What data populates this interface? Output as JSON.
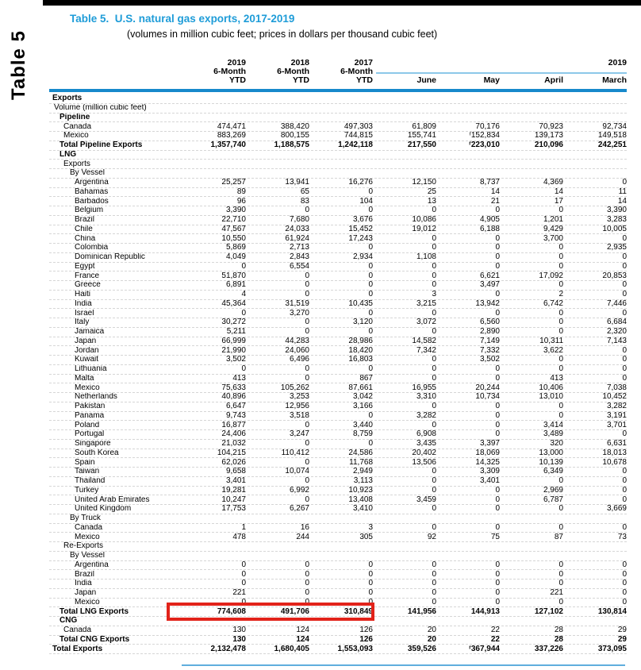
{
  "page": {
    "side_label": "Table 5",
    "title": "Table 5.  U.S. natural gas exports, 2017-2019",
    "subtitle": "(volumes in million cubic feet; prices in dollars per thousand cubic feet)"
  },
  "colors": {
    "accent_blue": "#1E9CD8",
    "rule_blue": "#1789CB",
    "light_blue": "#8CC8E9",
    "bottom_line_blue": "#5FAEDD",
    "highlight_red": "#E2231A"
  },
  "header": {
    "ytd_years": [
      "2019",
      "2018",
      "2017"
    ],
    "ytd_line2": "6-Month",
    "ytd_line3": "YTD",
    "month_group_year": "2019",
    "months": [
      "June",
      "May",
      "April",
      "March"
    ]
  },
  "rows": [
    {
      "label": "Exports",
      "indent": 0,
      "bold": true,
      "values": [
        "",
        "",
        "",
        "",
        "",
        "",
        ""
      ]
    },
    {
      "label": "Volume (million cubic feet)",
      "indent": 1,
      "bold": false,
      "values": [
        "",
        "",
        "",
        "",
        "",
        "",
        ""
      ]
    },
    {
      "label": "Pipeline",
      "indent": 2,
      "bold": true,
      "values": [
        "",
        "",
        "",
        "",
        "",
        "",
        ""
      ]
    },
    {
      "label": "Canada",
      "indent": 3,
      "bold": false,
      "values": [
        "474,471",
        "388,420",
        "497,303",
        "61,809",
        "70,176",
        "70,923",
        "92,734"
      ]
    },
    {
      "label": "Mexico",
      "indent": 3,
      "bold": false,
      "values": [
        "883,269",
        "800,155",
        "744,815",
        "155,741",
        "ʳ152,834",
        "139,173",
        "149,518"
      ]
    },
    {
      "label": "Total Pipeline Exports",
      "indent": 2,
      "bold": true,
      "values": [
        "1,357,740",
        "1,188,575",
        "1,242,118",
        "217,550",
        "ʳ223,010",
        "210,096",
        "242,251"
      ]
    },
    {
      "label": "LNG",
      "indent": 2,
      "bold": true,
      "values": [
        "",
        "",
        "",
        "",
        "",
        "",
        ""
      ]
    },
    {
      "label": "Exports",
      "indent": 3,
      "bold": false,
      "values": [
        "",
        "",
        "",
        "",
        "",
        "",
        ""
      ]
    },
    {
      "label": "By Vessel",
      "indent": 4,
      "bold": false,
      "values": [
        "",
        "",
        "",
        "",
        "",
        "",
        ""
      ]
    },
    {
      "label": "Argentina",
      "indent": 5,
      "bold": false,
      "values": [
        "25,257",
        "13,941",
        "16,276",
        "12,150",
        "8,737",
        "4,369",
        "0"
      ]
    },
    {
      "label": "Bahamas",
      "indent": 5,
      "bold": false,
      "values": [
        "89",
        "65",
        "0",
        "25",
        "14",
        "14",
        "11"
      ]
    },
    {
      "label": "Barbados",
      "indent": 5,
      "bold": false,
      "values": [
        "96",
        "83",
        "104",
        "13",
        "21",
        "17",
        "14"
      ]
    },
    {
      "label": "Belgium",
      "indent": 5,
      "bold": false,
      "values": [
        "3,390",
        "0",
        "0",
        "0",
        "0",
        "0",
        "3,390"
      ]
    },
    {
      "label": "Brazil",
      "indent": 5,
      "bold": false,
      "values": [
        "22,710",
        "7,680",
        "3,676",
        "10,086",
        "4,905",
        "1,201",
        "3,283"
      ]
    },
    {
      "label": "Chile",
      "indent": 5,
      "bold": false,
      "values": [
        "47,567",
        "24,033",
        "15,452",
        "19,012",
        "6,188",
        "9,429",
        "10,005"
      ]
    },
    {
      "label": "China",
      "indent": 5,
      "bold": false,
      "values": [
        "10,550",
        "61,924",
        "17,243",
        "0",
        "0",
        "3,700",
        "0"
      ]
    },
    {
      "label": "Colombia",
      "indent": 5,
      "bold": false,
      "values": [
        "5,869",
        "2,713",
        "0",
        "0",
        "0",
        "0",
        "2,935"
      ]
    },
    {
      "label": "Dominican Republic",
      "indent": 5,
      "bold": false,
      "values": [
        "4,049",
        "2,843",
        "2,934",
        "1,108",
        "0",
        "0",
        "0"
      ]
    },
    {
      "label": "Egypt",
      "indent": 5,
      "bold": false,
      "values": [
        "0",
        "6,554",
        "0",
        "0",
        "0",
        "0",
        "0"
      ]
    },
    {
      "label": "France",
      "indent": 5,
      "bold": false,
      "values": [
        "51,870",
        "0",
        "0",
        "0",
        "6,621",
        "17,092",
        "20,853"
      ]
    },
    {
      "label": "Greece",
      "indent": 5,
      "bold": false,
      "values": [
        "6,891",
        "0",
        "0",
        "0",
        "3,497",
        "0",
        "0"
      ]
    },
    {
      "label": "Haiti",
      "indent": 5,
      "bold": false,
      "values": [
        "4",
        "0",
        "0",
        "3",
        "0",
        "2",
        "0"
      ]
    },
    {
      "label": "India",
      "indent": 5,
      "bold": false,
      "values": [
        "45,364",
        "31,519",
        "10,435",
        "3,215",
        "13,942",
        "6,742",
        "7,446"
      ]
    },
    {
      "label": "Israel",
      "indent": 5,
      "bold": false,
      "values": [
        "0",
        "3,270",
        "0",
        "0",
        "0",
        "0",
        "0"
      ]
    },
    {
      "label": "Italy",
      "indent": 5,
      "bold": false,
      "values": [
        "30,272",
        "0",
        "3,120",
        "3,072",
        "6,560",
        "0",
        "6,684"
      ]
    },
    {
      "label": "Jamaica",
      "indent": 5,
      "bold": false,
      "values": [
        "5,211",
        "0",
        "0",
        "0",
        "2,890",
        "0",
        "2,320"
      ]
    },
    {
      "label": "Japan",
      "indent": 5,
      "bold": false,
      "values": [
        "66,999",
        "44,283",
        "28,986",
        "14,582",
        "7,149",
        "10,311",
        "7,143"
      ]
    },
    {
      "label": "Jordan",
      "indent": 5,
      "bold": false,
      "values": [
        "21,990",
        "24,060",
        "18,420",
        "7,342",
        "7,332",
        "3,622",
        "0"
      ]
    },
    {
      "label": "Kuwait",
      "indent": 5,
      "bold": false,
      "values": [
        "3,502",
        "6,496",
        "16,803",
        "0",
        "3,502",
        "0",
        "0"
      ]
    },
    {
      "label": "Lithuania",
      "indent": 5,
      "bold": false,
      "values": [
        "0",
        "0",
        "0",
        "0",
        "0",
        "0",
        "0"
      ]
    },
    {
      "label": "Malta",
      "indent": 5,
      "bold": false,
      "values": [
        "413",
        "0",
        "867",
        "0",
        "0",
        "413",
        "0"
      ]
    },
    {
      "label": "Mexico",
      "indent": 5,
      "bold": false,
      "values": [
        "75,633",
        "105,262",
        "87,661",
        "16,955",
        "20,244",
        "10,406",
        "7,038"
      ]
    },
    {
      "label": "Netherlands",
      "indent": 5,
      "bold": false,
      "values": [
        "40,896",
        "3,253",
        "3,042",
        "3,310",
        "10,734",
        "13,010",
        "10,452"
      ]
    },
    {
      "label": "Pakistan",
      "indent": 5,
      "bold": false,
      "values": [
        "6,647",
        "12,956",
        "3,166",
        "0",
        "0",
        "0",
        "3,282"
      ]
    },
    {
      "label": "Panama",
      "indent": 5,
      "bold": false,
      "values": [
        "9,743",
        "3,518",
        "0",
        "3,282",
        "0",
        "0",
        "3,191"
      ]
    },
    {
      "label": "Poland",
      "indent": 5,
      "bold": false,
      "values": [
        "16,877",
        "0",
        "3,440",
        "0",
        "0",
        "3,414",
        "3,701"
      ]
    },
    {
      "label": "Portugal",
      "indent": 5,
      "bold": false,
      "values": [
        "24,406",
        "3,247",
        "8,759",
        "6,908",
        "0",
        "3,489",
        "0"
      ]
    },
    {
      "label": "Singapore",
      "indent": 5,
      "bold": false,
      "values": [
        "21,032",
        "0",
        "0",
        "3,435",
        "3,397",
        "320",
        "6,631"
      ]
    },
    {
      "label": "South Korea",
      "indent": 5,
      "bold": false,
      "values": [
        "104,215",
        "110,412",
        "24,586",
        "20,402",
        "18,069",
        "13,000",
        "18,013"
      ]
    },
    {
      "label": "Spain",
      "indent": 5,
      "bold": false,
      "values": [
        "62,026",
        "0",
        "11,768",
        "13,506",
        "14,325",
        "10,139",
        "10,678"
      ]
    },
    {
      "label": "Taiwan",
      "indent": 5,
      "bold": false,
      "values": [
        "9,658",
        "10,074",
        "2,949",
        "0",
        "3,309",
        "6,349",
        "0"
      ]
    },
    {
      "label": "Thailand",
      "indent": 5,
      "bold": false,
      "values": [
        "3,401",
        "0",
        "3,113",
        "0",
        "3,401",
        "0",
        "0"
      ]
    },
    {
      "label": "Turkey",
      "indent": 5,
      "bold": false,
      "values": [
        "19,281",
        "6,992",
        "10,923",
        "0",
        "0",
        "2,969",
        "0"
      ]
    },
    {
      "label": "United Arab Emirates",
      "indent": 5,
      "bold": false,
      "values": [
        "10,247",
        "0",
        "13,408",
        "3,459",
        "0",
        "6,787",
        "0"
      ]
    },
    {
      "label": "United Kingdom",
      "indent": 5,
      "bold": false,
      "values": [
        "17,753",
        "6,267",
        "3,410",
        "0",
        "0",
        "0",
        "3,669"
      ]
    },
    {
      "label": "By Truck",
      "indent": 4,
      "bold": false,
      "values": [
        "",
        "",
        "",
        "",
        "",
        "",
        ""
      ]
    },
    {
      "label": "Canada",
      "indent": 5,
      "bold": false,
      "values": [
        "1",
        "16",
        "3",
        "0",
        "0",
        "0",
        "0"
      ]
    },
    {
      "label": "Mexico",
      "indent": 5,
      "bold": false,
      "values": [
        "478",
        "244",
        "305",
        "92",
        "75",
        "87",
        "73"
      ]
    },
    {
      "label": "Re-Exports",
      "indent": 3,
      "bold": false,
      "values": [
        "",
        "",
        "",
        "",
        "",
        "",
        ""
      ]
    },
    {
      "label": "By Vessel",
      "indent": 4,
      "bold": false,
      "values": [
        "",
        "",
        "",
        "",
        "",
        "",
        ""
      ]
    },
    {
      "label": "Argentina",
      "indent": 5,
      "bold": false,
      "values": [
        "0",
        "0",
        "0",
        "0",
        "0",
        "0",
        "0"
      ]
    },
    {
      "label": "Brazil",
      "indent": 5,
      "bold": false,
      "values": [
        "0",
        "0",
        "0",
        "0",
        "0",
        "0",
        "0"
      ]
    },
    {
      "label": "India",
      "indent": 5,
      "bold": false,
      "values": [
        "0",
        "0",
        "0",
        "0",
        "0",
        "0",
        "0"
      ]
    },
    {
      "label": "Japan",
      "indent": 5,
      "bold": false,
      "values": [
        "221",
        "0",
        "0",
        "0",
        "0",
        "221",
        "0"
      ]
    },
    {
      "label": "Mexico",
      "indent": 5,
      "bold": false,
      "values": [
        "0",
        "0",
        "0",
        "0",
        "0",
        "0",
        "0"
      ]
    },
    {
      "label": "Total LNG Exports",
      "indent": 2,
      "bold": true,
      "highlight": true,
      "values": [
        "774,608",
        "491,706",
        "310,849",
        "141,956",
        "144,913",
        "127,102",
        "130,814"
      ]
    },
    {
      "label": "CNG",
      "indent": 2,
      "bold": true,
      "values": [
        "",
        "",
        "",
        "",
        "",
        "",
        ""
      ]
    },
    {
      "label": "Canada",
      "indent": 3,
      "bold": false,
      "values": [
        "130",
        "124",
        "126",
        "20",
        "22",
        "28",
        "29"
      ]
    },
    {
      "label": "Total CNG Exports",
      "indent": 2,
      "bold": true,
      "values": [
        "130",
        "124",
        "126",
        "20",
        "22",
        "28",
        "29"
      ]
    },
    {
      "label": "Total Exports",
      "indent": 0,
      "bold": true,
      "values": [
        "2,132,478",
        "1,680,405",
        "1,553,093",
        "359,526",
        "ʳ367,944",
        "337,226",
        "373,095"
      ]
    }
  ]
}
